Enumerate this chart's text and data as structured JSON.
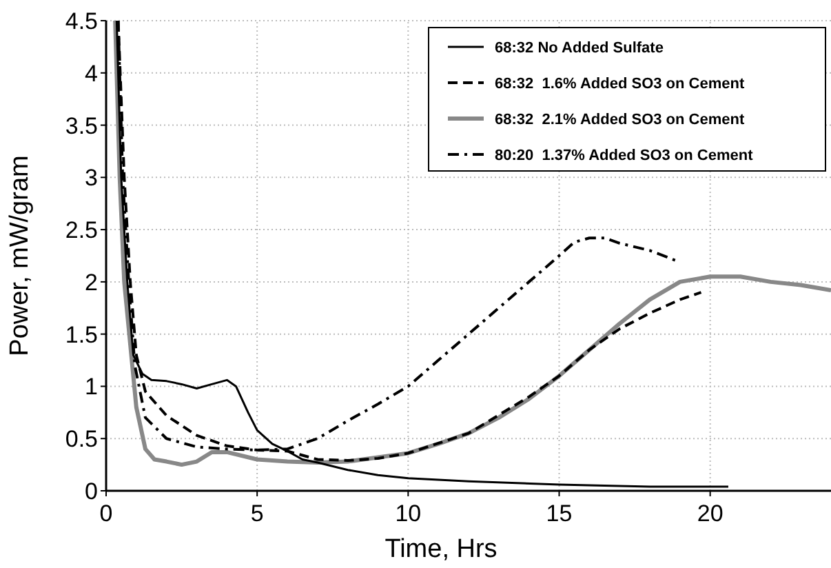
{
  "chart_data": {
    "type": "line",
    "xlabel": "Time, Hrs",
    "ylabel": "Power, mW/gram",
    "xlim": [
      0,
      24
    ],
    "ylim": [
      0,
      4.5
    ],
    "xticks": [
      0,
      5,
      10,
      15,
      20
    ],
    "yticks": [
      0,
      0.5,
      1,
      1.5,
      2,
      2.5,
      3,
      3.5,
      4,
      4.5
    ],
    "grid": true,
    "legend": "top right",
    "series": [
      {
        "name": "68:32 No Added Sulfate",
        "color": "#000000",
        "line_style": "solid",
        "x": [
          0.35,
          0.5,
          0.7,
          0.9,
          1.2,
          1.5,
          2,
          2.5,
          3,
          3.5,
          4,
          4.3,
          4.7,
          5,
          5.5,
          6,
          6.5,
          7,
          8,
          9,
          10,
          12,
          15,
          18,
          20.6
        ],
        "values": [
          4.5,
          3,
          2,
          1.3,
          1.12,
          1.06,
          1.05,
          1.02,
          0.98,
          1.02,
          1.06,
          1.0,
          0.75,
          0.58,
          0.45,
          0.38,
          0.3,
          0.27,
          0.2,
          0.15,
          0.12,
          0.09,
          0.06,
          0.04,
          0.04
        ]
      },
      {
        "name": "68:32  1.6% Added SO3 on Cement",
        "color": "#000000",
        "line_style": "dashed",
        "x": [
          0.4,
          0.6,
          0.8,
          1.0,
          1.3,
          2,
          3,
          4,
          5,
          6,
          7,
          8,
          9,
          10,
          12,
          14,
          15,
          16,
          17,
          18,
          19,
          19.7
        ],
        "values": [
          4.5,
          3,
          2,
          1.3,
          0.95,
          0.72,
          0.53,
          0.43,
          0.39,
          0.38,
          0.3,
          0.29,
          0.31,
          0.36,
          0.55,
          0.9,
          1.1,
          1.35,
          1.55,
          1.7,
          1.83,
          1.9
        ]
      },
      {
        "name": "68:32  2.1% Added SO3 on Cement",
        "color": "#888888",
        "line_style": "solid",
        "x": [
          0.3,
          0.45,
          0.6,
          0.8,
          1.0,
          1.3,
          1.6,
          2,
          2.5,
          3,
          3.5,
          4,
          5,
          6,
          7,
          8,
          9,
          10,
          11,
          12,
          13,
          14,
          15,
          16,
          17,
          18,
          19,
          20,
          21,
          22,
          23,
          24
        ],
        "values": [
          4.5,
          3,
          2,
          1.4,
          0.8,
          0.4,
          0.3,
          0.28,
          0.25,
          0.28,
          0.37,
          0.37,
          0.3,
          0.28,
          0.27,
          0.28,
          0.32,
          0.36,
          0.45,
          0.55,
          0.7,
          0.88,
          1.1,
          1.35,
          1.6,
          1.83,
          2.0,
          2.05,
          2.05,
          2.0,
          1.97,
          1.92
        ]
      },
      {
        "name": "80:20  1.37% Added SO3 on Cement",
        "color": "#000000",
        "line_style": "dashdot",
        "x": [
          0.4,
          0.55,
          0.75,
          0.95,
          1.3,
          2,
          3,
          4,
          5,
          6,
          7,
          8,
          9,
          10,
          11,
          12,
          13,
          14,
          15,
          15.5,
          16,
          16.5,
          17,
          18,
          18.9
        ],
        "values": [
          4.5,
          3,
          2,
          1.2,
          0.7,
          0.5,
          0.42,
          0.4,
          0.39,
          0.4,
          0.5,
          0.67,
          0.83,
          1.0,
          1.25,
          1.5,
          1.75,
          2.0,
          2.25,
          2.38,
          2.42,
          2.42,
          2.37,
          2.3,
          2.2
        ]
      }
    ]
  }
}
